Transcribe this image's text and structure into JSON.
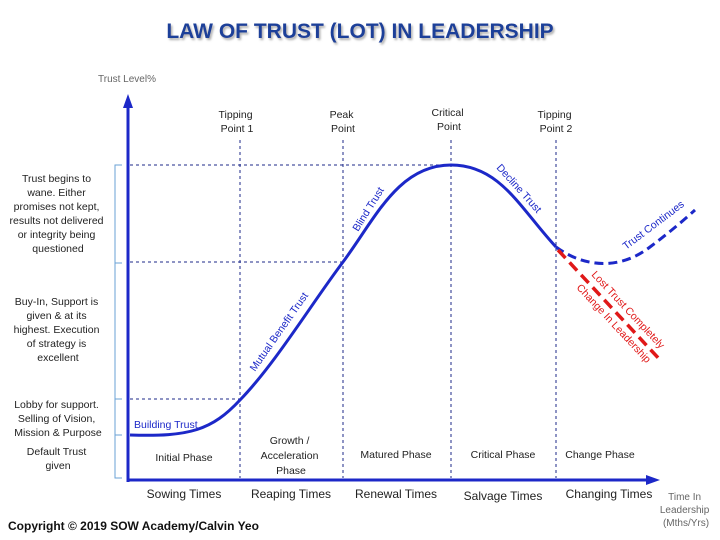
{
  "title": "LAW OF TRUST (LOT) IN LEADERSHIP",
  "y_axis_label": "Trust Level%",
  "x_axis_label": [
    "Time In",
    "Leadership",
    "(Mths/Yrs)"
  ],
  "copyright": "Copyright © 2019 SOW Academy/Calvin Yeo",
  "left_notes": {
    "wane": [
      "Trust begins to",
      "wane. Either",
      "promises not kept,",
      "results not delivered",
      "or integrity being",
      "questioned"
    ],
    "buyin": [
      "Buy-In, Support is",
      "given & at its",
      "highest. Execution",
      "of strategy is",
      "excellent"
    ],
    "lobby": [
      "Lobby for support.",
      "Selling of Vision,",
      "Mission & Purpose"
    ],
    "default": [
      "Default Trust",
      "given"
    ]
  },
  "points": {
    "tp1": [
      "Tipping",
      "Point 1"
    ],
    "peak": [
      "Peak",
      "Point"
    ],
    "critical": [
      "Critical",
      "Point"
    ],
    "tp2": [
      "Tipping",
      "Point 2"
    ]
  },
  "phases": {
    "initial": "Initial Phase",
    "growth": [
      "Growth /",
      "Acceleration",
      "Phase"
    ],
    "matured": "Matured Phase",
    "critical": "Critical Phase",
    "change": "Change Phase"
  },
  "times": {
    "sowing": "Sowing Times",
    "reaping": "Reaping Times",
    "renewal": "Renewal Times",
    "salvage": "Salvage Times",
    "changing": "Changing Times"
  },
  "curve_labels": {
    "building": "Building Trust",
    "mutual": "Mutual Benefit Trust",
    "blind": "Blind Trust",
    "decline": "Decline Trust",
    "continues": "Trust Continues",
    "lost": "Lost Trust Completely",
    "change": "Change In Leadership"
  },
  "colors": {
    "title": "#1f3f99",
    "axis": "#1c28c8",
    "curve": "#1c28c8",
    "guide": "#1c2a8a",
    "bracket": "#6aa2d6",
    "red": "#e01818"
  }
}
